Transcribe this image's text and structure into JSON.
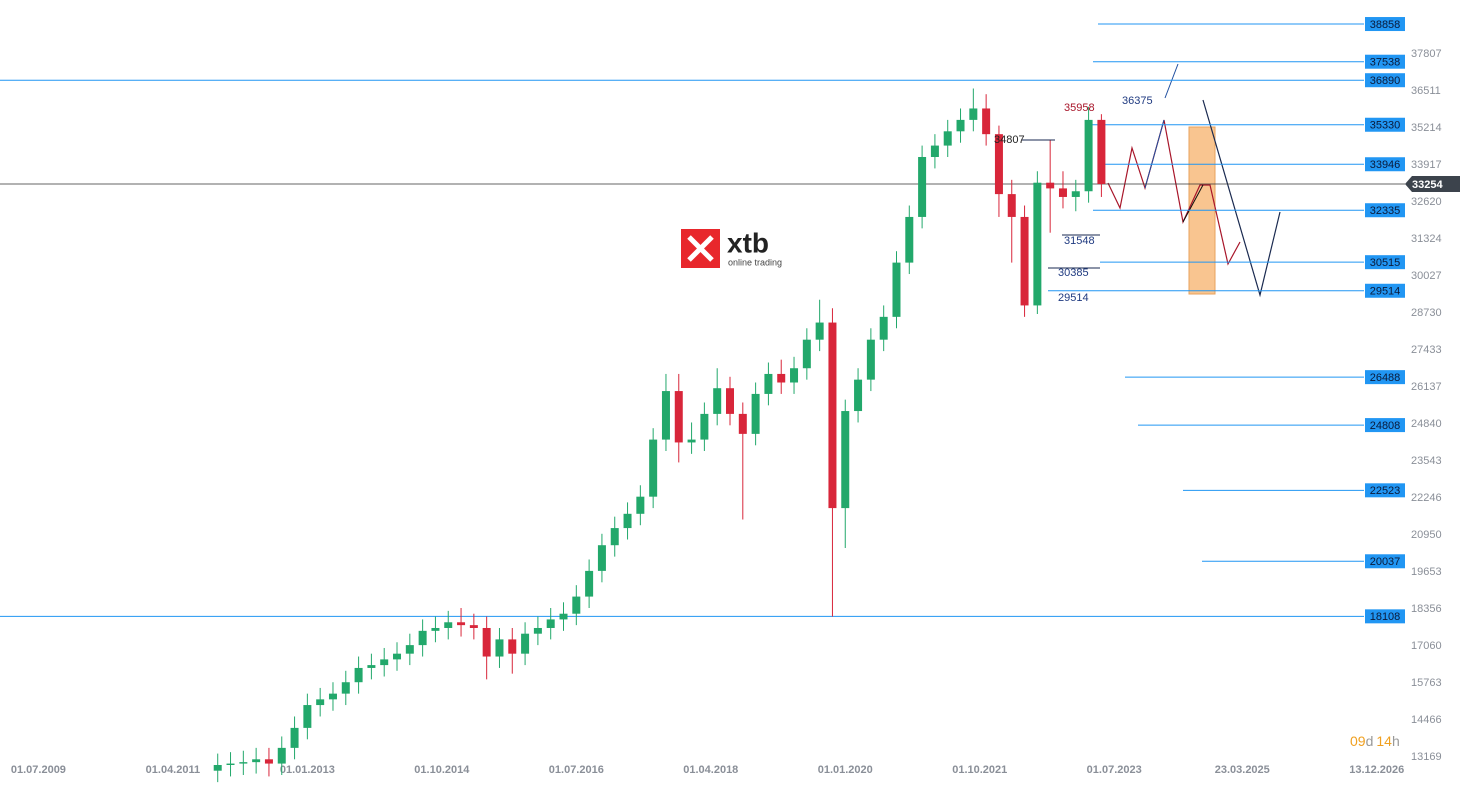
{
  "chart_data": {
    "type": "candlestick",
    "logo": {
      "brand": "xtb",
      "tagline": "online trading"
    },
    "countdown": [
      "09",
      "d",
      "14",
      "h"
    ],
    "xlim": [
      "2009-01",
      "2028-01"
    ],
    "xticks": [
      {
        "value": "2009-07",
        "label": "01.07.2009"
      },
      {
        "value": "2011-04",
        "label": "01.04.2011"
      },
      {
        "value": "2013-01",
        "label": "01.01.2013"
      },
      {
        "value": "2014-10",
        "label": "01.10.2014"
      },
      {
        "value": "2016-07",
        "label": "01.07.2016"
      },
      {
        "value": "2018-04",
        "label": "01.04.2018"
      },
      {
        "value": "2020-01",
        "label": "01.01.2020"
      },
      {
        "value": "2021-10",
        "label": "01.10.2021"
      },
      {
        "value": "2023-07",
        "label": "01.07.2023"
      },
      {
        "value": "2025-03",
        "label": "23.03.2025"
      },
      {
        "value": "2026-12",
        "label": "13.12.2026"
      }
    ],
    "ylim": [
      12900,
      39700
    ],
    "yticks": [
      13169,
      14466,
      15763,
      17060,
      18356,
      19653,
      20950,
      22246,
      23543,
      24840,
      26137,
      27433,
      28730,
      30027,
      31324,
      32620,
      33917,
      35214,
      36511,
      37807
    ],
    "up_color": "#22a86b",
    "down_color": "#d8263a",
    "level_color": "#2196f3",
    "x": [
      "2011-10",
      "2011-12",
      "2012-02",
      "2012-04",
      "2012-06",
      "2012-08",
      "2012-10",
      "2012-12",
      "2013-02",
      "2013-04",
      "2013-06",
      "2013-08",
      "2013-10",
      "2013-12",
      "2014-02",
      "2014-04",
      "2014-06",
      "2014-08",
      "2014-10",
      "2014-12",
      "2015-02",
      "2015-04",
      "2015-06",
      "2015-08",
      "2015-10",
      "2015-12",
      "2016-02",
      "2016-04",
      "2016-06",
      "2016-08",
      "2016-10",
      "2016-12",
      "2017-02",
      "2017-04",
      "2017-06",
      "2017-08",
      "2017-10",
      "2017-12",
      "2018-02",
      "2018-04",
      "2018-06",
      "2018-08",
      "2018-10",
      "2018-12",
      "2019-02",
      "2019-04",
      "2019-06",
      "2019-08",
      "2019-10",
      "2019-12",
      "2020-02",
      "2020-04",
      "2020-06",
      "2020-08",
      "2020-10",
      "2020-12",
      "2021-02",
      "2021-04",
      "2021-06",
      "2021-08",
      "2021-10",
      "2021-12",
      "2022-02",
      "2022-04",
      "2022-06",
      "2022-08",
      "2022-10",
      "2022-12",
      "2023-02",
      "2023-04"
    ],
    "open": [
      12700,
      12900,
      12950,
      13000,
      13100,
      12950,
      13500,
      14200,
      15000,
      15200,
      15400,
      15800,
      16300,
      16400,
      16600,
      16800,
      17100,
      17600,
      17700,
      17900,
      17800,
      17700,
      16700,
      17300,
      16800,
      17500,
      17700,
      18000,
      18200,
      18800,
      19700,
      20600,
      21200,
      21700,
      22300,
      24300,
      26000,
      24200,
      24300,
      25200,
      26100,
      25200,
      24500,
      25900,
      26600,
      26300,
      26800,
      27800,
      28400,
      21900,
      25300,
      26400,
      27800,
      28600,
      30500,
      32100,
      34200,
      34600,
      35100,
      35500,
      35900,
      35000,
      32900,
      32100,
      29000,
      33300,
      33100,
      32800,
      33000,
      35500
    ],
    "high": [
      13300,
      13350,
      13400,
      13500,
      13500,
      13900,
      14600,
      15400,
      15600,
      15800,
      16200,
      16700,
      16800,
      17000,
      17200,
      17500,
      18000,
      18100,
      18300,
      18400,
      18200,
      18100,
      17700,
      17700,
      17900,
      18100,
      18400,
      18600,
      19200,
      20100,
      21000,
      21600,
      22100,
      22700,
      24700,
      26600,
      26600,
      24900,
      25600,
      26800,
      26500,
      25600,
      26300,
      27000,
      27100,
      27200,
      28200,
      29200,
      28900,
      25700,
      26800,
      28200,
      29000,
      30900,
      32500,
      34600,
      35000,
      35500,
      35900,
      36600,
      36400,
      35300,
      33400,
      32500,
      33700,
      34807,
      33700,
      33400,
      35958,
      35700
    ],
    "low": [
      12300,
      12500,
      12550,
      12600,
      12500,
      12550,
      13100,
      13800,
      14600,
      14800,
      15000,
      15400,
      15900,
      16000,
      16200,
      16400,
      16700,
      17200,
      17300,
      17400,
      17300,
      15900,
      16300,
      16100,
      16400,
      17100,
      17300,
      17600,
      17800,
      18400,
      19300,
      20200,
      20800,
      21300,
      21900,
      23900,
      23500,
      23800,
      23900,
      24800,
      24800,
      21500,
      24100,
      25500,
      25900,
      25900,
      26400,
      27400,
      18100,
      20500,
      24900,
      26000,
      27400,
      28200,
      30100,
      31700,
      33800,
      34200,
      34700,
      35100,
      34600,
      32100,
      30500,
      28600,
      28700,
      31548,
      32400,
      32300,
      32600,
      32800
    ],
    "close": [
      12900,
      12950,
      13000,
      13100,
      12950,
      13500,
      14200,
      15000,
      15200,
      15400,
      15800,
      16300,
      16400,
      16600,
      16800,
      17100,
      17600,
      17700,
      17900,
      17800,
      17700,
      16700,
      17300,
      16800,
      17500,
      17700,
      18000,
      18200,
      18800,
      19700,
      20600,
      21200,
      21700,
      22300,
      24300,
      26000,
      24200,
      24300,
      25200,
      26100,
      25200,
      24500,
      25900,
      26600,
      26300,
      26800,
      27800,
      28400,
      21900,
      25300,
      26400,
      27800,
      28600,
      30500,
      32100,
      34200,
      34600,
      35100,
      35500,
      35900,
      35000,
      32900,
      32100,
      29000,
      33300,
      33100,
      32800,
      33000,
      35500,
      33254
    ],
    "levels": [
      38858,
      37538,
      36890,
      35330,
      33946,
      32335,
      30515,
      29514,
      26488,
      24808,
      22523,
      20037,
      18108
    ],
    "current_price": 33254,
    "annotations": [
      35958,
      36375,
      34807,
      31548,
      30385,
      29514
    ]
  }
}
